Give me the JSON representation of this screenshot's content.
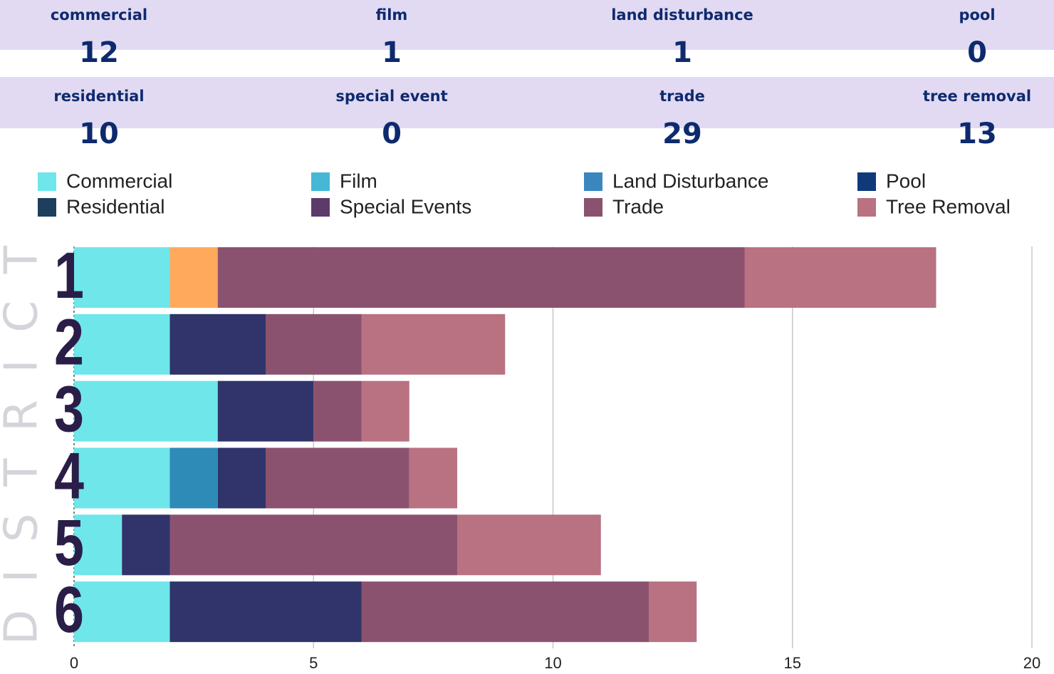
{
  "stats": [
    {
      "label": "commercial",
      "value": 12
    },
    {
      "label": "film",
      "value": 1
    },
    {
      "label": "land disturbance",
      "value": 1
    },
    {
      "label": "pool",
      "value": 0
    },
    {
      "label": "residential",
      "value": 10
    },
    {
      "label": "special event",
      "value": 0
    },
    {
      "label": "trade",
      "value": 29
    },
    {
      "label": "tree removal",
      "value": 13
    }
  ],
  "chart_data": {
    "type": "stacked_barh",
    "y_label": "DISTRICT",
    "categories": [
      "1",
      "2",
      "3",
      "4",
      "5",
      "6"
    ],
    "series": [
      {
        "name": "Commercial",
        "color": "#6ee6ea",
        "legend_color": "#6ee6ea",
        "values": [
          2,
          2,
          3,
          2,
          1,
          2
        ]
      },
      {
        "name": "Film",
        "color": "#ffa95c",
        "legend_color": "#45b8d6",
        "values": [
          1,
          0,
          0,
          0,
          0,
          0
        ]
      },
      {
        "name": "Land Disturbance",
        "color": "#2e8bb8",
        "legend_color": "#3a87c0",
        "values": [
          0,
          0,
          0,
          1,
          0,
          0
        ]
      },
      {
        "name": "Pool",
        "color": "#0e3a7a",
        "legend_color": "#0e3a7a",
        "values": [
          0,
          0,
          0,
          0,
          0,
          0
        ]
      },
      {
        "name": "Residential",
        "color": "#30346b",
        "legend_color": "#1d3f5c",
        "values": [
          0,
          2,
          2,
          1,
          1,
          4
        ]
      },
      {
        "name": "Special Events",
        "color": "#5e3a6a",
        "legend_color": "#5e3a6a",
        "values": [
          0,
          0,
          0,
          0,
          0,
          0
        ]
      },
      {
        "name": "Trade",
        "color": "#8b526f",
        "legend_color": "#8b526f",
        "values": [
          11,
          2,
          1,
          3,
          6,
          6
        ]
      },
      {
        "name": "Tree Removal",
        "color": "#b87282",
        "legend_color": "#b87282",
        "values": [
          4,
          3,
          1,
          1,
          3,
          1
        ]
      }
    ],
    "xlim": [
      0,
      20
    ],
    "xticks": [
      0,
      5,
      10,
      15,
      20
    ],
    "grid": true
  }
}
